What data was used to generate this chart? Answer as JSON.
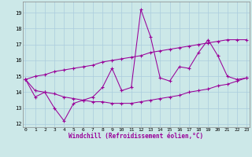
{
  "bg_color": "#cce8e8",
  "grid_color": "#aaccdd",
  "line_color": "#990099",
  "xlabel": "Windchill (Refroidissement éolien,°C)",
  "xlabel_color": "#990099",
  "xlim": [
    -0.3,
    23.3
  ],
  "ylim": [
    11.8,
    19.7
  ],
  "yticks": [
    12,
    13,
    14,
    15,
    16,
    17,
    18,
    19
  ],
  "xticks": [
    0,
    1,
    2,
    3,
    4,
    5,
    6,
    7,
    8,
    9,
    10,
    11,
    12,
    13,
    14,
    15,
    16,
    17,
    18,
    19,
    20,
    21,
    22,
    23
  ],
  "main_x": [
    0,
    1,
    2,
    3,
    4,
    5,
    6,
    7,
    8,
    9,
    10,
    11,
    12,
    13,
    14,
    15,
    16,
    17,
    18,
    19,
    20,
    21,
    22,
    23
  ],
  "main_y": [
    14.8,
    13.7,
    14.0,
    13.0,
    12.2,
    13.3,
    13.5,
    13.7,
    14.3,
    15.5,
    14.1,
    14.3,
    19.2,
    17.5,
    14.9,
    14.7,
    15.6,
    15.5,
    16.5,
    17.3,
    16.3,
    15.0,
    14.8,
    14.9
  ],
  "upper_x": [
    0,
    1,
    2,
    3,
    4,
    5,
    6,
    7,
    8,
    9,
    10,
    11,
    12,
    13,
    14,
    15,
    16,
    17,
    18,
    19,
    20,
    21,
    22,
    23
  ],
  "upper_y": [
    14.8,
    15.0,
    15.1,
    15.3,
    15.4,
    15.5,
    15.6,
    15.7,
    15.9,
    16.0,
    16.1,
    16.2,
    16.3,
    16.5,
    16.6,
    16.7,
    16.8,
    16.9,
    17.0,
    17.1,
    17.2,
    17.3,
    17.3,
    17.3
  ],
  "lower_x": [
    0,
    1,
    2,
    3,
    4,
    5,
    6,
    7,
    8,
    9,
    10,
    11,
    12,
    13,
    14,
    15,
    16,
    17,
    18,
    19,
    20,
    21,
    22,
    23
  ],
  "lower_y": [
    14.8,
    14.1,
    14.0,
    13.9,
    13.7,
    13.6,
    13.5,
    13.4,
    13.4,
    13.3,
    13.3,
    13.3,
    13.4,
    13.5,
    13.6,
    13.7,
    13.8,
    14.0,
    14.1,
    14.2,
    14.4,
    14.5,
    14.7,
    14.9
  ]
}
